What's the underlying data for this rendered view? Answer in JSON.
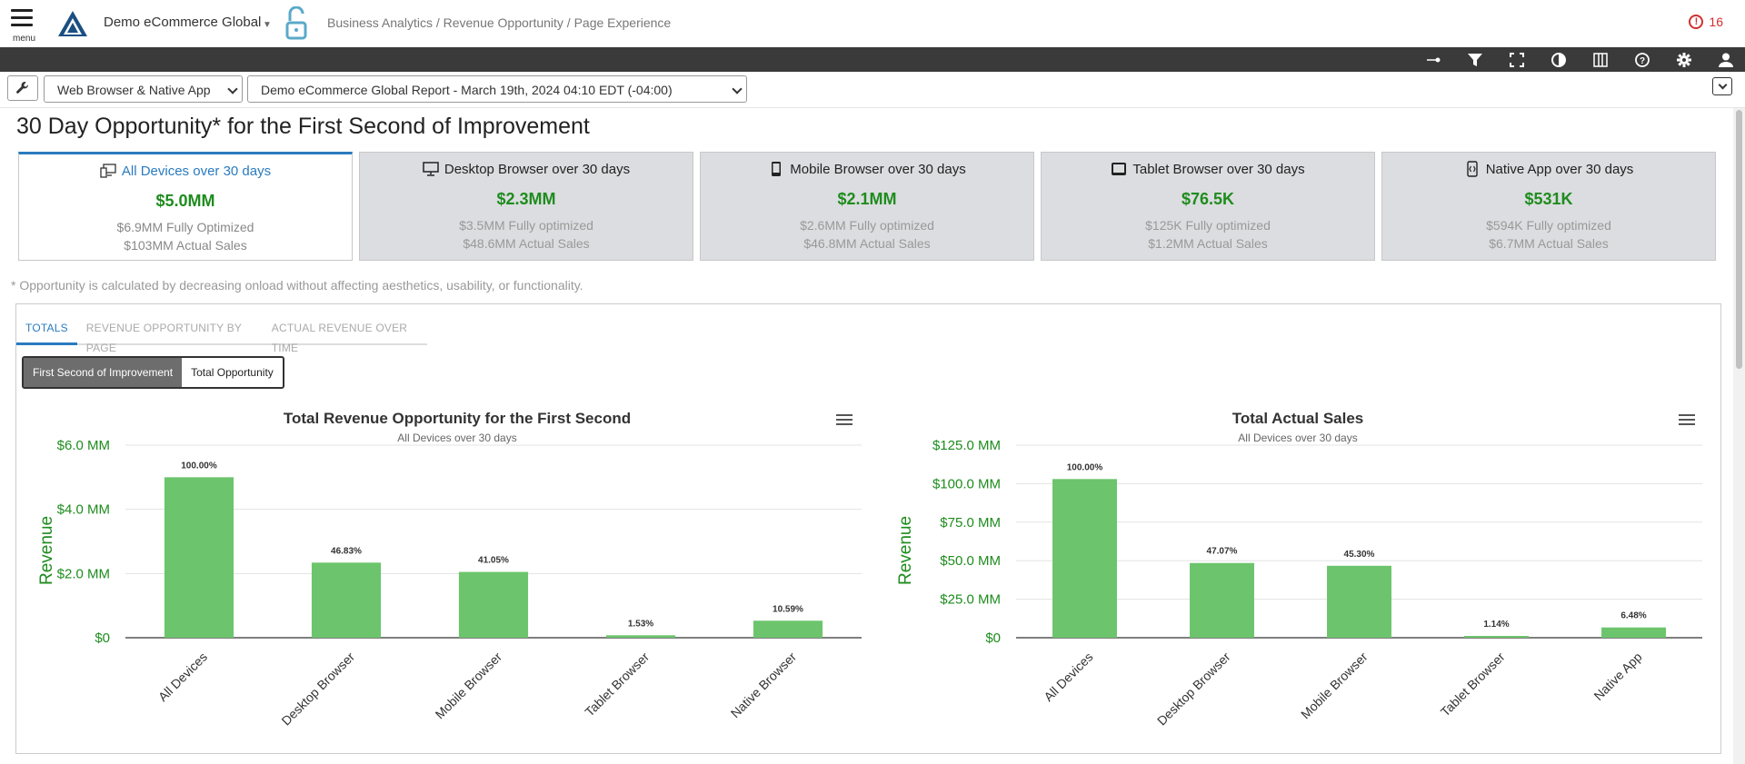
{
  "header": {
    "menu_label": "menu",
    "org_name": "Demo eCommerce Global",
    "breadcrumb": "Business Analytics / Revenue Opportunity / Page Experience",
    "alert_count": "16",
    "logo_icon": "brand-triangle-logo",
    "lock_icon": "unlocked-padlock-icon"
  },
  "toolbar": {
    "icons": [
      "pin-icon",
      "filter-icon",
      "fullscreen-icon",
      "contrast-icon",
      "columns-icon",
      "help-icon",
      "settings-icon",
      "user-icon"
    ]
  },
  "filters": {
    "platform": "Web Browser & Native App",
    "report": "Demo eCommerce Global Report - March 19th, 2024 04:10 EDT (-04:00)"
  },
  "page_title": "30 Day Opportunity* for the First Second of Improvement",
  "cards": [
    {
      "title": "All Devices over 30 days",
      "value": "$5.0MM",
      "optimized": "$6.9MM Fully Optimized",
      "actual": "$103MM Actual Sales",
      "icon": "all-devices-icon"
    },
    {
      "title": "Desktop Browser over 30 days",
      "value": "$2.3MM",
      "optimized": "$3.5MM Fully optimized",
      "actual": "$48.6MM Actual Sales",
      "icon": "desktop-icon"
    },
    {
      "title": "Mobile Browser over 30 days",
      "value": "$2.1MM",
      "optimized": "$2.6MM Fully optimized",
      "actual": "$46.8MM Actual Sales",
      "icon": "mobile-icon"
    },
    {
      "title": "Tablet Browser over 30 days",
      "value": "$76.5K",
      "optimized": "$125K Fully optimized",
      "actual": "$1.2MM Actual Sales",
      "icon": "tablet-icon"
    },
    {
      "title": "Native App over 30 days",
      "value": "$531K",
      "optimized": "$594K Fully optimized",
      "actual": "$6.7MM Actual Sales",
      "icon": "native-app-icon"
    }
  ],
  "footnote": "* Opportunity is calculated by decreasing onload without affecting aesthetics, usability, or functionality.",
  "tabs": [
    "TOTALS",
    "REVENUE OPPORTUNITY BY PAGE",
    "ACTUAL REVENUE OVER TIME"
  ],
  "toggle": {
    "left": "First Second of Improvement",
    "right": "Total Opportunity"
  },
  "colors": {
    "accent": "#2a7bbf",
    "bar": "#6cc56c",
    "value_green": "#1e8c1e",
    "axis_green": "#1e8c1e",
    "alert": "#d32f2f"
  },
  "chart_data": [
    {
      "type": "bar",
      "title": "Total Revenue Opportunity for the First Second",
      "subtitle": "All Devices over 30 days",
      "ylabel": "Revenue",
      "categories": [
        "All Devices",
        "Desktop Browser",
        "Mobile Browser",
        "Tablet Browser",
        "Native Browser"
      ],
      "values": [
        5.0,
        2.34,
        2.05,
        0.077,
        0.53
      ],
      "data_labels": [
        "100.00%",
        "46.83%",
        "41.05%",
        "1.53%",
        "10.59%"
      ],
      "yticks": [
        0,
        2,
        4,
        6
      ],
      "ytick_labels": [
        "$0",
        "$2.0 MM",
        "$4.0 MM",
        "$6.0 MM"
      ],
      "ylim": [
        0,
        6
      ]
    },
    {
      "type": "bar",
      "title": "Total Actual Sales",
      "subtitle": "All Devices over 30 days",
      "ylabel": "Revenue",
      "categories": [
        "All Devices",
        "Desktop Browser",
        "Mobile Browser",
        "Tablet Browser",
        "Native App"
      ],
      "values": [
        103,
        48.5,
        46.7,
        1.17,
        6.67
      ],
      "data_labels": [
        "100.00%",
        "47.07%",
        "45.30%",
        "1.14%",
        "6.48%"
      ],
      "yticks": [
        0,
        25,
        50,
        75,
        100,
        125
      ],
      "ytick_labels": [
        "$0",
        "$25.0 MM",
        "$50.0 MM",
        "$75.0 MM",
        "$100.0 MM",
        "$125.0 MM"
      ],
      "ylim": [
        0,
        125
      ]
    }
  ]
}
